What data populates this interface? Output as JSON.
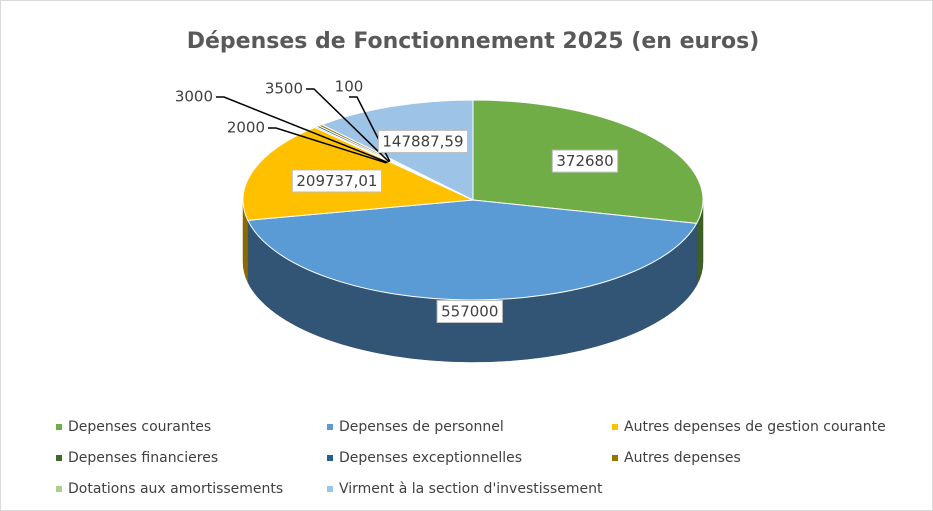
{
  "chart_data": {
    "type": "pie3d",
    "title": "Dépenses de Fonctionnement 2025 (en euros)",
    "categories": [
      "Depenses courantes",
      "Depenses de personnel",
      "Autres depenses de gestion courante",
      "Depenses financieres",
      "Depenses exceptionnelles",
      "Autres depenses",
      "Dotations aux amortissements",
      "Virment à la section d'investissement"
    ],
    "values": [
      372680,
      557000,
      209737.01,
      2000,
      3000,
      3500,
      100,
      147887.59
    ],
    "value_labels": [
      "372680",
      "557000",
      "209737,01",
      "2000",
      "3000",
      "3500",
      "100",
      "147887,59"
    ],
    "colors": [
      "#70ad47",
      "#5b9bd5",
      "#ffc000",
      "#43682b",
      "#255e91",
      "#997300",
      "#a9d18e",
      "#9dc3e6"
    ],
    "legend": "bottom"
  }
}
